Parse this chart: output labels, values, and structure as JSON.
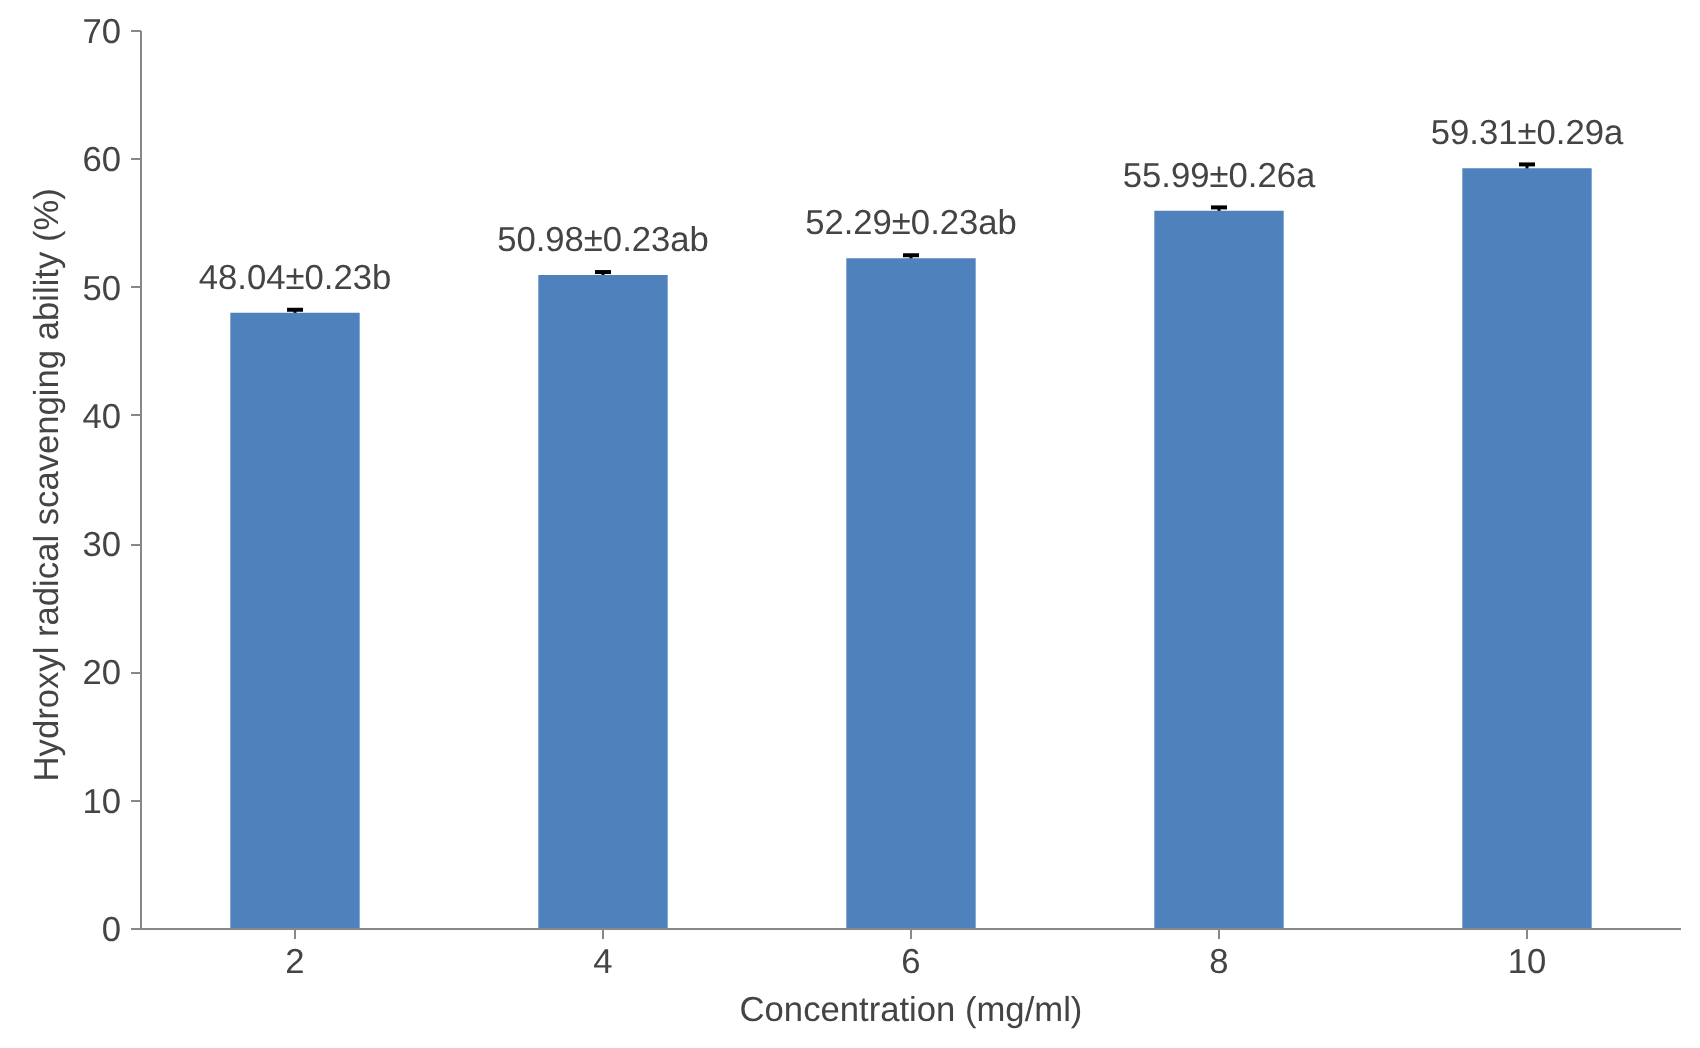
{
  "chart_data": {
    "type": "bar",
    "xlabel": "Concentration (mg/ml)",
    "ylabel": "Hydroxyl radical scavenging  ability (%)",
    "categories": [
      "2",
      "4",
      "6",
      "8",
      "10"
    ],
    "values": [
      48.04,
      50.98,
      52.29,
      55.99,
      59.31
    ],
    "errors": [
      0.23,
      0.23,
      0.23,
      0.26,
      0.29
    ],
    "value_labels": [
      "48.04±0.23b",
      "50.98±0.23ab",
      "52.29±0.23ab",
      "55.99±0.26a",
      "59.31±0.29a"
    ],
    "color": "#4f81bd",
    "ylim": [
      0,
      70
    ],
    "yticks": [
      0,
      10,
      20,
      30,
      40,
      50,
      60,
      70
    ],
    "grid": false
  }
}
